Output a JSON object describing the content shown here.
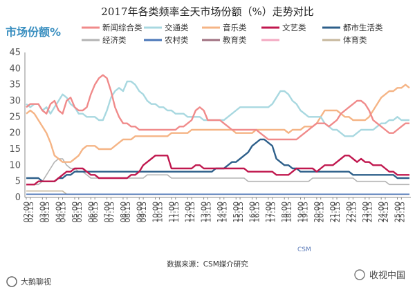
{
  "chart_data": {
    "type": "line",
    "title": "2017年各类频率全天市场份额（%）走势对比",
    "ylabel": "市场份额%",
    "xlabel": "",
    "ylim": [
      0,
      45
    ],
    "yticks": [
      0,
      5,
      10,
      15,
      20,
      25,
      30,
      35,
      40,
      45
    ],
    "grid": "none",
    "legend_position": "top",
    "x": [
      "02:00",
      "02:15",
      "02:30",
      "02:45",
      "03:00",
      "03:15",
      "03:30",
      "03:45",
      "04:00",
      "04:15",
      "04:30",
      "04:45",
      "05:00",
      "05:15",
      "05:30",
      "05:45",
      "06:00",
      "06:15",
      "06:30",
      "06:45",
      "07:00",
      "07:15",
      "07:30",
      "07:45",
      "08:00",
      "08:15",
      "08:30",
      "08:45",
      "09:00",
      "09:15",
      "09:30",
      "09:45",
      "10:00",
      "10:15",
      "10:30",
      "10:45",
      "11:00",
      "11:15",
      "11:30",
      "11:45",
      "12:00",
      "12:15",
      "12:30",
      "12:45",
      "13:00",
      "13:15",
      "13:30",
      "13:45",
      "14:00",
      "14:15",
      "14:30",
      "14:45",
      "15:00",
      "15:15",
      "15:30",
      "15:45",
      "16:00",
      "16:15",
      "16:30",
      "16:45",
      "17:00",
      "17:15",
      "17:30",
      "17:45",
      "18:00",
      "18:15",
      "18:30",
      "18:45",
      "19:00",
      "19:15",
      "19:30",
      "19:45",
      "20:00",
      "20:15",
      "20:30",
      "20:45",
      "21:00",
      "21:15",
      "21:30",
      "21:45",
      "22:00",
      "22:15",
      "22:30",
      "22:45",
      "23:00",
      "23:15",
      "23:30",
      "23:45",
      "24:00",
      "24:15",
      "24:30",
      "24:45",
      "25:00",
      "25:15",
      "25:30",
      "25:45"
    ],
    "xtick_labels": [
      "02:00",
      "02:15",
      "03:00",
      "03:15",
      "04:00",
      "04:15",
      "05:00",
      "05:15",
      "06:00",
      "06:15",
      "07:00",
      "07:15",
      "08:00",
      "08:15",
      "09:00",
      "09:15",
      "10:00",
      "10:15",
      "11:00",
      "11:15",
      "12:00",
      "12:15",
      "13:00",
      "13:15",
      "14:00",
      "14:15",
      "15:00",
      "15:15",
      "16:00",
      "16:15",
      "17:00",
      "17:15",
      "18:00",
      "18:15",
      "19:00",
      "19:15",
      "20:00",
      "20:15",
      "21:00",
      "21:15",
      "22:00",
      "22:15",
      "23:00",
      "23:15",
      "24:00",
      "24:15",
      "25:00",
      "25:15"
    ],
    "series": [
      {
        "name": "新闻综合类",
        "color": "#f08a8a",
        "values": [
          28,
          29,
          29,
          29,
          27,
          26,
          29,
          30,
          27,
          26,
          30,
          31,
          28,
          27,
          27,
          28,
          32,
          35,
          37,
          38,
          37,
          33,
          28,
          25,
          23,
          23,
          22,
          22,
          21,
          21,
          21,
          21,
          21,
          21,
          21,
          21,
          21,
          21,
          22,
          22,
          23,
          24,
          27,
          28,
          27,
          24,
          24,
          24,
          24,
          23,
          22,
          21,
          21,
          21,
          21,
          21,
          21,
          21,
          20,
          19,
          18,
          18,
          18,
          18,
          18,
          18,
          18,
          18,
          19,
          20,
          21,
          22,
          23,
          23,
          23,
          22,
          23,
          24,
          26,
          27,
          28,
          29,
          30,
          30,
          29,
          27,
          24,
          23,
          22,
          21,
          20,
          20,
          21,
          22,
          23,
          23
        ]
      },
      {
        "name": "交通类",
        "color": "#a8d8e0",
        "values": [
          29,
          28,
          29,
          29,
          27,
          28,
          26,
          28,
          30,
          32,
          31,
          29,
          28,
          26,
          26,
          25,
          25,
          25,
          24,
          24,
          27,
          31,
          33,
          34,
          33,
          36,
          36,
          35,
          33,
          32,
          30,
          29,
          29,
          28,
          28,
          27,
          27,
          26,
          26,
          26,
          25,
          25,
          25,
          25,
          24,
          24,
          24,
          24,
          24,
          24,
          25,
          26,
          27,
          28,
          28,
          28,
          28,
          28,
          28,
          28,
          28,
          29,
          31,
          33,
          33,
          32,
          30,
          29,
          27,
          26,
          25,
          25,
          25,
          25,
          23,
          22,
          21,
          21,
          20,
          19,
          19,
          19,
          20,
          21,
          21,
          21,
          21,
          22,
          23,
          23,
          24,
          24,
          25,
          24,
          24,
          24
        ]
      },
      {
        "name": "音乐类",
        "color": "#f5b485",
        "values": [
          26,
          27,
          26,
          24,
          22,
          20,
          17,
          13,
          12,
          11,
          11,
          11,
          12,
          13,
          15,
          16,
          16,
          16,
          15,
          15,
          15,
          15,
          16,
          17,
          18,
          18,
          18,
          19,
          19,
          19,
          19,
          19,
          19,
          19,
          19,
          19,
          20,
          20,
          20,
          20,
          20,
          21,
          21,
          21,
          21,
          21,
          21,
          21,
          21,
          21,
          21,
          21,
          20,
          20,
          20,
          20,
          20,
          21,
          21,
          21,
          21,
          21,
          21,
          21,
          21,
          20,
          21,
          21,
          21,
          22,
          22,
          22,
          23,
          25,
          27,
          27,
          27,
          27,
          26,
          25,
          25,
          24,
          24,
          24,
          24,
          25,
          27,
          29,
          31,
          32,
          33,
          33,
          34,
          34,
          35,
          34
        ]
      },
      {
        "name": "文艺类",
        "color": "#c0174e",
        "values": [
          4,
          4,
          4,
          5,
          5,
          5,
          5,
          5,
          6,
          7,
          8,
          8,
          9,
          9,
          9,
          8,
          7,
          7,
          6,
          6,
          6,
          6,
          6,
          6,
          6,
          6,
          7,
          7,
          8,
          10,
          11,
          12,
          13,
          13,
          13,
          13,
          9,
          9,
          9,
          9,
          9,
          9,
          10,
          10,
          9,
          9,
          9,
          9,
          9,
          9,
          9,
          9,
          9,
          9,
          9,
          8,
          8,
          8,
          8,
          8,
          8,
          8,
          7,
          7,
          7,
          7,
          8,
          9,
          9,
          9,
          9,
          9,
          8,
          9,
          10,
          10,
          10,
          11,
          12,
          13,
          13,
          12,
          11,
          12,
          11,
          11,
          10,
          10,
          10,
          9,
          8,
          8,
          7,
          7,
          7,
          7
        ]
      },
      {
        "name": "都市生活类",
        "color": "#2d5f8a",
        "values": [
          6,
          6,
          6,
          6,
          5,
          5,
          5,
          5,
          6,
          6,
          7,
          7,
          8,
          8,
          8,
          8,
          8,
          8,
          8,
          8,
          8,
          8,
          8,
          8,
          8,
          8,
          8,
          8,
          8,
          8,
          8,
          8,
          8,
          8,
          8,
          8,
          8,
          8,
          8,
          8,
          8,
          8,
          8,
          8,
          8,
          8,
          8,
          9,
          9,
          9,
          10,
          11,
          11,
          12,
          13,
          14,
          16,
          17,
          18,
          18,
          17,
          16,
          12,
          11,
          10,
          10,
          9,
          9,
          8,
          8,
          8,
          8,
          8,
          8,
          8,
          8,
          8,
          8,
          8,
          8,
          8,
          7,
          7,
          7,
          7,
          7,
          7,
          7,
          7,
          7,
          7,
          7,
          6,
          6,
          6,
          6
        ]
      },
      {
        "name": "经济类",
        "color": "#b3b3b3",
        "values": [
          4,
          4,
          4,
          4,
          5,
          7,
          9,
          11,
          12,
          12,
          10,
          9,
          9,
          8,
          8,
          7,
          6,
          6,
          6,
          6,
          6,
          6,
          6,
          6,
          6,
          6,
          6,
          6,
          6,
          6,
          7,
          7,
          7,
          7,
          7,
          7,
          6,
          6,
          6,
          6,
          6,
          6,
          6,
          6,
          6,
          6,
          6,
          6,
          6,
          6,
          6,
          6,
          6,
          6,
          6,
          5,
          5,
          5,
          5,
          5,
          5,
          5,
          5,
          5,
          5,
          5,
          5,
          5,
          5,
          5,
          5,
          6,
          6,
          6,
          6,
          6,
          6,
          6,
          6,
          6,
          6,
          6,
          5,
          5,
          5,
          5,
          5,
          5,
          5,
          5,
          4,
          4,
          4,
          4,
          4,
          4
        ]
      },
      {
        "name": "农村类",
        "color": "#4a76b8",
        "values": [
          1,
          1,
          1,
          1,
          1,
          1,
          1,
          1,
          1,
          1,
          1,
          1,
          1,
          1,
          1,
          1,
          1,
          1,
          1,
          1,
          1,
          1,
          1,
          1,
          1,
          1,
          1,
          1,
          1,
          1,
          1,
          1,
          1,
          1,
          1,
          1,
          1,
          1,
          1,
          1,
          1,
          1,
          1,
          1,
          1,
          1,
          1,
          1,
          1,
          1,
          1,
          1,
          1,
          1,
          1,
          1,
          1,
          1,
          1,
          1,
          1,
          1,
          1,
          1,
          1,
          1,
          1,
          1,
          1,
          1,
          1,
          1,
          1,
          1,
          1,
          1,
          1,
          1,
          1,
          1,
          1,
          1,
          1,
          1,
          1,
          1,
          1,
          1,
          1,
          1,
          1,
          1,
          1,
          1,
          1,
          1
        ]
      },
      {
        "name": "教育类",
        "color": "#a07080",
        "values": [
          1,
          1,
          1,
          1,
          1,
          1,
          1,
          1,
          1,
          1,
          1,
          1,
          1,
          1,
          1,
          1,
          1,
          1,
          1,
          1,
          1,
          1,
          1,
          1,
          1,
          1,
          1,
          1,
          1,
          1,
          1,
          1,
          1,
          1,
          1,
          1,
          1,
          1,
          1,
          1,
          1,
          1,
          1,
          1,
          1,
          1,
          1,
          1,
          1,
          1,
          1,
          1,
          1,
          1,
          1,
          1,
          1,
          1,
          1,
          1,
          1,
          1,
          1,
          1,
          1,
          1,
          1,
          1,
          1,
          1,
          1,
          1,
          1,
          1,
          1,
          1,
          1,
          1,
          1,
          1,
          1,
          1,
          1,
          1,
          1,
          1,
          1,
          1,
          1,
          1,
          1,
          1,
          1,
          1,
          1,
          1
        ]
      },
      {
        "name": "",
        "color": "#f3a9c2",
        "values": [
          1,
          1,
          1,
          1,
          1,
          1,
          1,
          1,
          1,
          1,
          1,
          1,
          1,
          1,
          1,
          1,
          1,
          1,
          1,
          1,
          1,
          1,
          1,
          1,
          1,
          1,
          1,
          1,
          1,
          1,
          1,
          1,
          1,
          1,
          1,
          1,
          1,
          1,
          1,
          1,
          1,
          1,
          1,
          1,
          1,
          1,
          1,
          1,
          1,
          1,
          1,
          1,
          1,
          1,
          1,
          1,
          1,
          1,
          1,
          1,
          1,
          1,
          1,
          1,
          1,
          1,
          1,
          1,
          1,
          1,
          1,
          1,
          1,
          1,
          1,
          1,
          1,
          1,
          1,
          1,
          1,
          1,
          1,
          1,
          1,
          1,
          1,
          1,
          1,
          1,
          1,
          1,
          1,
          1,
          1,
          1
        ]
      },
      {
        "name": "体育类",
        "color": "#c6b79c",
        "values": [
          2,
          2,
          2,
          2,
          2,
          2,
          2,
          2,
          2,
          2,
          1,
          1,
          1,
          1,
          1,
          1,
          1,
          1,
          1,
          1,
          1,
          1,
          1,
          1,
          1,
          1,
          1,
          1,
          1,
          1,
          1,
          1,
          1,
          1,
          1,
          1,
          1,
          1,
          1,
          1,
          1,
          1,
          1,
          1,
          1,
          1,
          1,
          1,
          1,
          1,
          1,
          1,
          1,
          1,
          1,
          1,
          1,
          1,
          1,
          1,
          1,
          1,
          1,
          1,
          1,
          1,
          1,
          1,
          1,
          1,
          1,
          1,
          1,
          1,
          1,
          1,
          1,
          1,
          1,
          1,
          1,
          1,
          1,
          1,
          1,
          1,
          1,
          1,
          1,
          1,
          1,
          1,
          1,
          1,
          1,
          1
        ]
      }
    ],
    "source": "数据来源：CSM媒介研究"
  },
  "watermark_left": "大鹅聊视",
  "watermark_right": "收视中国",
  "logo_text": "CSM"
}
